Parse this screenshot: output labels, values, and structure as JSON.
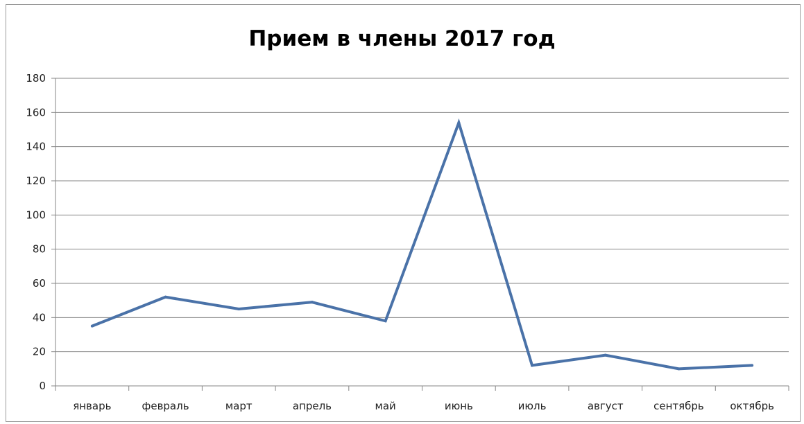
{
  "chart_data": {
    "type": "line",
    "title": "Прием в члены 2017 год",
    "xlabel": "",
    "ylabel": "",
    "categories": [
      "январь",
      "февраль",
      "март",
      "апрель",
      "май",
      "июнь",
      "июль",
      "август",
      "сентябрь",
      "октябрь"
    ],
    "series": [
      {
        "values": [
          35,
          52,
          45,
          49,
          38,
          154,
          12,
          18,
          10,
          12
        ]
      }
    ],
    "ylim": [
      0,
      180
    ],
    "yticks": [
      "0",
      "20",
      "40",
      "60",
      "80",
      "100",
      "120",
      "140",
      "160",
      "180"
    ],
    "grid": true,
    "legend": "none",
    "colors": {
      "line": "#4a72a8",
      "grid": "#868686",
      "axis": "#868686"
    }
  }
}
